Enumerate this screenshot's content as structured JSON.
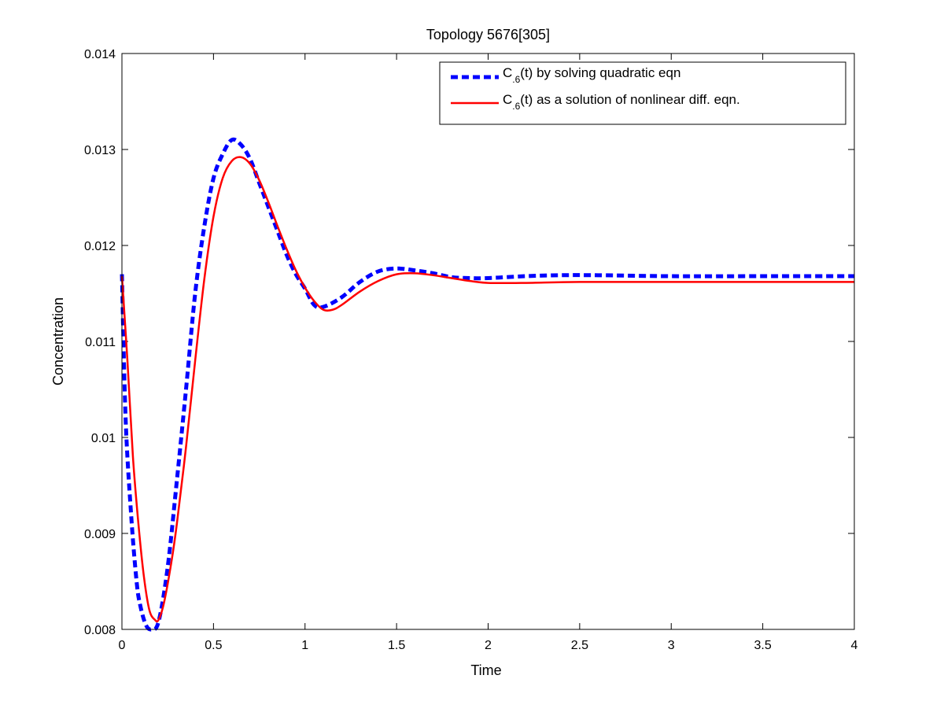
{
  "chart_data": {
    "type": "line",
    "title": "Topology 5676[305]",
    "xlabel": "Time",
    "ylabel": "Concentration",
    "xlim": [
      0,
      4
    ],
    "ylim": [
      0.008,
      0.014
    ],
    "xticks": [
      "0",
      "0.5",
      "1",
      "1.5",
      "2",
      "2.5",
      "3",
      "3.5",
      "4"
    ],
    "yticks": [
      "0.008",
      "0.009",
      "0.01",
      "0.011",
      "0.012",
      "0.013",
      "0.014"
    ],
    "grid": false,
    "legend_position": "top-right",
    "series": [
      {
        "label_main": "C",
        "label_sub": ".6",
        "label_rest": "(t) by solving quadratic eqn",
        "color": "#0000ff",
        "style": "dashed",
        "x": [
          0,
          0.02,
          0.05,
          0.08,
          0.1,
          0.13,
          0.16,
          0.2,
          0.25,
          0.3,
          0.35,
          0.4,
          0.45,
          0.5,
          0.55,
          0.6,
          0.65,
          0.7,
          0.75,
          0.8,
          0.85,
          0.9,
          0.95,
          1.0,
          1.05,
          1.1,
          1.2,
          1.3,
          1.4,
          1.5,
          1.6,
          1.7,
          1.8,
          1.9,
          2.0,
          2.2,
          2.4,
          2.6,
          3.0,
          3.5,
          4.0
        ],
        "y": [
          0.0117,
          0.0102,
          0.0092,
          0.0085,
          0.00825,
          0.00805,
          0.008,
          0.00808,
          0.00865,
          0.00955,
          0.0105,
          0.0115,
          0.0122,
          0.0127,
          0.01295,
          0.0131,
          0.01305,
          0.0129,
          0.01265,
          0.0124,
          0.01215,
          0.0119,
          0.0117,
          0.01155,
          0.01138,
          0.01136,
          0.01146,
          0.01162,
          0.01173,
          0.01176,
          0.01174,
          0.01171,
          0.01167,
          0.01166,
          0.01166,
          0.01168,
          0.01169,
          0.01169,
          0.01168,
          0.01168,
          0.01168
        ]
      },
      {
        "label_main": "C",
        "label_sub": ".6",
        "label_rest": "(t) as a solution of nonlinear diff. eqn.",
        "color": "#ff0000",
        "style": "solid",
        "x": [
          0,
          0.03,
          0.06,
          0.09,
          0.12,
          0.15,
          0.18,
          0.2,
          0.23,
          0.27,
          0.3,
          0.35,
          0.4,
          0.45,
          0.5,
          0.55,
          0.6,
          0.65,
          0.7,
          0.75,
          0.8,
          0.85,
          0.9,
          0.95,
          1.0,
          1.05,
          1.1,
          1.15,
          1.2,
          1.3,
          1.4,
          1.5,
          1.6,
          1.7,
          1.8,
          1.9,
          2.0,
          2.2,
          2.5,
          3.0,
          3.5,
          4.0
        ],
        "y": [
          0.01168,
          0.0108,
          0.0098,
          0.0091,
          0.00855,
          0.0082,
          0.0081,
          0.0081,
          0.00828,
          0.0087,
          0.0091,
          0.0099,
          0.0108,
          0.01165,
          0.0123,
          0.0127,
          0.01288,
          0.01292,
          0.01285,
          0.01268,
          0.01245,
          0.0122,
          0.01196,
          0.01174,
          0.01156,
          0.01142,
          0.01133,
          0.01133,
          0.01138,
          0.01152,
          0.01163,
          0.0117,
          0.01171,
          0.01169,
          0.01166,
          0.01163,
          0.01161,
          0.01161,
          0.01162,
          0.01162,
          0.01162,
          0.01162
        ]
      }
    ]
  }
}
